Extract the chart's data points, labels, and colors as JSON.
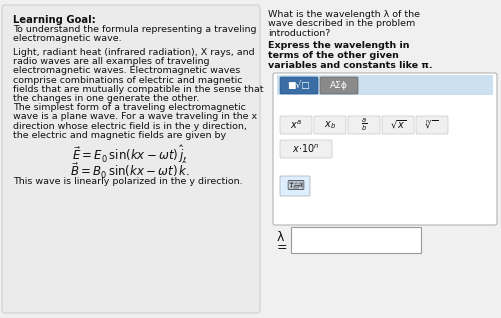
{
  "bg_color": "#f0f0f0",
  "left_panel_bg": "#ebebeb",
  "left_panel_border": "#cccccc",
  "left_title": "Learning Goal:",
  "left_body_lines": [
    "To understand the formula representing a traveling",
    "electromagnetic wave.",
    "",
    "Light, radiant heat (infrared radiation), X rays, and",
    "radio waves are all examples of traveling",
    "electromagnetic waves. Electromagnetic waves",
    "comprise combinations of electric and magnetic",
    "fields that are mutually compatible in the sense that",
    "the changes in one generate the other.",
    "The simplest form of a traveling electromagnetic",
    "wave is a plane wave. For a wave traveling in the x",
    "direction whose electric field is in the y direction,",
    "the electric and magnetic fields are given by"
  ],
  "left_footer": "This wave is linearly polarized in the y direction.",
  "right_question_lines": [
    "What is the wavelength λ of the",
    "wave described in the problem",
    "introduction?"
  ],
  "right_bold_lines": [
    "Express the wavelength in",
    "terms of the other given",
    "variables and constants like π."
  ],
  "toolbar_color": "#cce0f0",
  "btn_blue_color": "#3a6ea5",
  "btn_gray_color": "#8a8a8a",
  "btn_light_color": "#f0f0f0",
  "btn_blue_icon": "■√□",
  "btn_gray_icon": "AΣϕ",
  "widget_border": "#aaaaaa",
  "widget_bg": "#ffffff",
  "input_border": "#999999",
  "lambda_sym": "λ",
  "equals_sym": "=",
  "font_body": 6.8,
  "font_title": 7.2,
  "font_eq": 8.5,
  "font_btn": 6.5
}
